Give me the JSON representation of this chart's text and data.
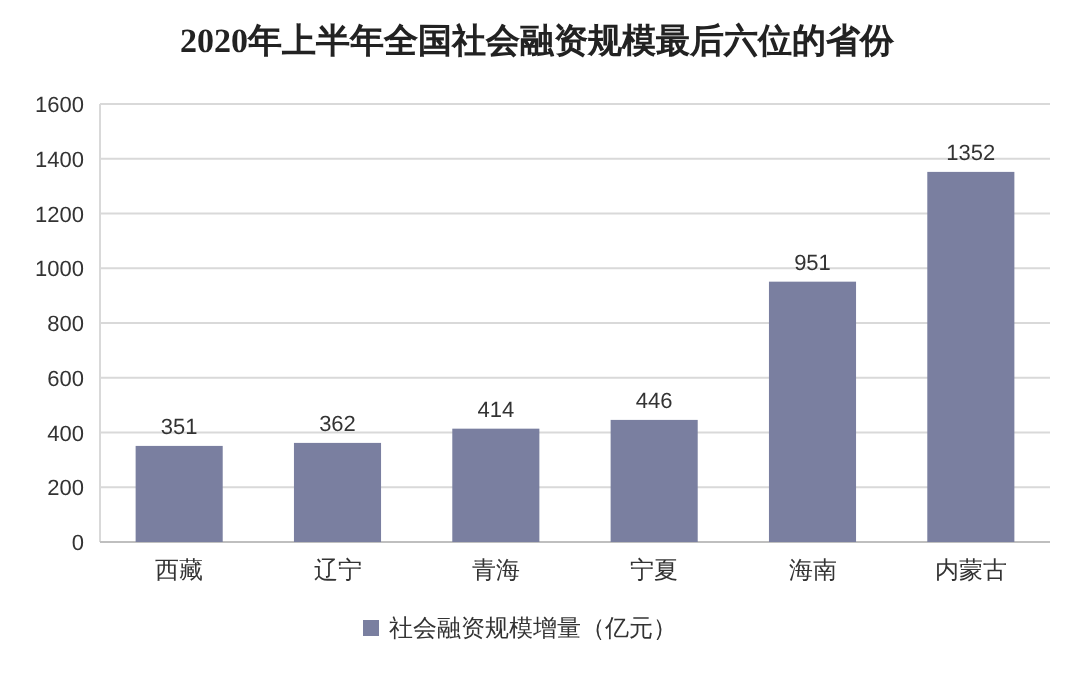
{
  "chart_data": {
    "type": "bar",
    "title": "2020年上半年全国社会融资规模最后六位的省份",
    "categories": [
      "西藏",
      "辽宁",
      "青海",
      "宁夏",
      "海南",
      "内蒙古"
    ],
    "series": [
      {
        "name": "社会融资规模增量（亿元）",
        "color": "#7a7fa0",
        "values": [
          351,
          362,
          414,
          446,
          951,
          1352
        ]
      }
    ],
    "ylim": [
      0,
      1600
    ],
    "yticks": [
      0,
      200,
      400,
      600,
      800,
      1000,
      1200,
      1400,
      1600
    ],
    "grid": "y",
    "legend": "bottom",
    "data_labels": true
  }
}
